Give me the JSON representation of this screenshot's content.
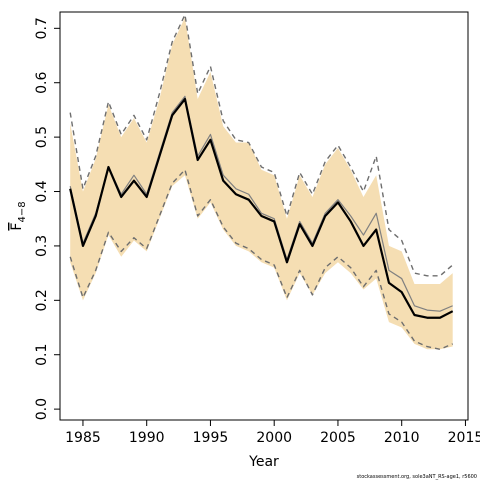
{
  "chart_data": {
    "type": "line",
    "xlabel": "Year",
    "ylabel": "F",
    "ylabel_sub": "4−8",
    "xlim": [
      1983.2,
      2015.2
    ],
    "ylim": [
      -0.02,
      0.73
    ],
    "xticks": [
      1985,
      1990,
      1995,
      2000,
      2005,
      2010,
      2015
    ],
    "yticks": [
      0.0,
      0.1,
      0.2,
      0.3,
      0.4,
      0.5,
      0.6,
      0.7
    ],
    "ytick_labels": [
      "0.0",
      "0.1",
      "0.2",
      "0.3",
      "0.4",
      "0.5",
      "0.6",
      "0.7"
    ],
    "grid": false,
    "footnote": "stockassessment.org, sole3aNT_RS-age1, r5600",
    "colors": {
      "band": "#f5deb3",
      "estimate": "#000000",
      "reference": "#808080",
      "bounds": "#6e6e6e"
    },
    "x": [
      1984,
      1985,
      1986,
      1987,
      1988,
      1989,
      1990,
      1991,
      1992,
      1993,
      1994,
      1995,
      1996,
      1997,
      1998,
      1999,
      2000,
      2001,
      2002,
      2003,
      2004,
      2005,
      2006,
      2007,
      2008,
      2009,
      2010,
      2011,
      2012,
      2013,
      2014
    ],
    "band_upper": [
      0.525,
      0.4,
      0.46,
      0.56,
      0.5,
      0.535,
      0.49,
      0.57,
      0.67,
      0.72,
      0.57,
      0.62,
      0.52,
      0.49,
      0.49,
      0.44,
      0.43,
      0.35,
      0.43,
      0.39,
      0.45,
      0.48,
      0.44,
      0.39,
      0.43,
      0.3,
      0.29,
      0.23,
      0.23,
      0.23,
      0.25
    ],
    "band_lower": [
      0.27,
      0.2,
      0.25,
      0.32,
      0.28,
      0.31,
      0.29,
      0.35,
      0.41,
      0.43,
      0.35,
      0.38,
      0.33,
      0.3,
      0.29,
      0.27,
      0.26,
      0.2,
      0.25,
      0.21,
      0.25,
      0.27,
      0.25,
      0.22,
      0.24,
      0.16,
      0.15,
      0.12,
      0.11,
      0.11,
      0.115
    ],
    "series": [
      {
        "role": "estimate",
        "values": [
          0.405,
          0.3,
          0.355,
          0.445,
          0.39,
          0.42,
          0.39,
          0.465,
          0.54,
          0.57,
          0.458,
          0.495,
          0.42,
          0.395,
          0.385,
          0.355,
          0.345,
          0.27,
          0.34,
          0.3,
          0.355,
          0.38,
          0.345,
          0.3,
          0.33,
          0.232,
          0.215,
          0.173,
          0.168,
          0.168,
          0.18
        ]
      },
      {
        "role": "reference",
        "values": [
          0.41,
          0.305,
          0.36,
          0.445,
          0.395,
          0.43,
          0.395,
          0.47,
          0.545,
          0.575,
          0.465,
          0.505,
          0.43,
          0.405,
          0.395,
          0.36,
          0.35,
          0.275,
          0.345,
          0.305,
          0.36,
          0.385,
          0.355,
          0.32,
          0.36,
          0.255,
          0.24,
          0.19,
          0.182,
          0.18,
          0.19
        ]
      },
      {
        "role": "upper-bound",
        "values": [
          0.545,
          0.405,
          0.465,
          0.565,
          0.505,
          0.54,
          0.495,
          0.58,
          0.675,
          0.725,
          0.58,
          0.63,
          0.53,
          0.495,
          0.49,
          0.445,
          0.435,
          0.355,
          0.435,
          0.395,
          0.455,
          0.485,
          0.445,
          0.4,
          0.465,
          0.33,
          0.31,
          0.25,
          0.245,
          0.245,
          0.265
        ]
      },
      {
        "role": "lower-bound",
        "values": [
          0.28,
          0.205,
          0.255,
          0.325,
          0.29,
          0.315,
          0.295,
          0.355,
          0.415,
          0.44,
          0.355,
          0.385,
          0.335,
          0.305,
          0.295,
          0.275,
          0.265,
          0.205,
          0.255,
          0.21,
          0.26,
          0.28,
          0.26,
          0.225,
          0.255,
          0.175,
          0.16,
          0.125,
          0.115,
          0.11,
          0.12
        ]
      }
    ]
  }
}
